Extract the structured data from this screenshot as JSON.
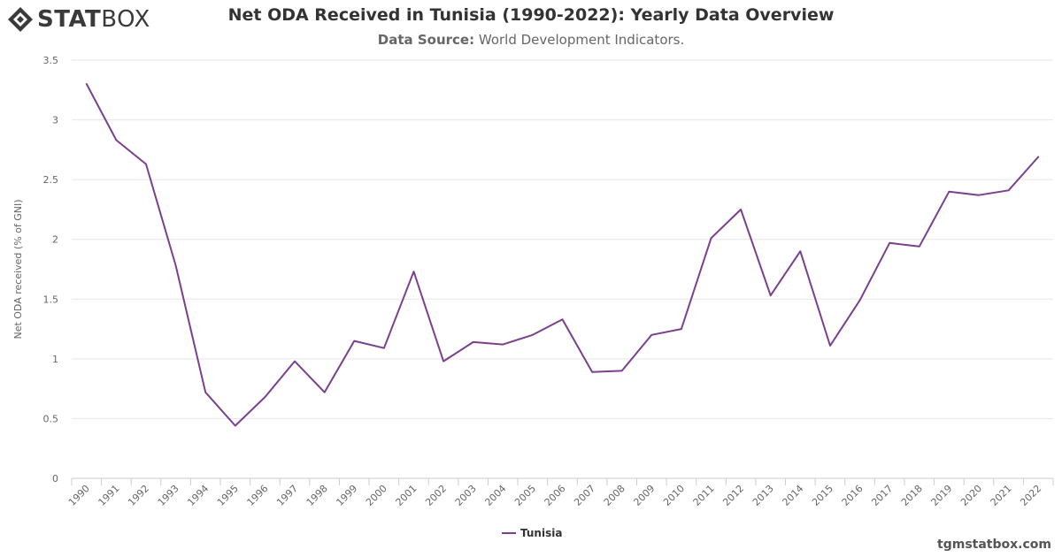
{
  "brand": {
    "logo_bold": "STAT",
    "logo_light": "BOX"
  },
  "header": {
    "title": "Net ODA Received in Tunisia (1990-2022): Yearly Data Overview",
    "subtitle_label": "Data Source:",
    "subtitle_text": "World Development Indicators."
  },
  "footer": {
    "site": "tgmstatbox.com"
  },
  "chart_data": {
    "type": "line",
    "title": "Net ODA Received in Tunisia (1990-2022): Yearly Data Overview",
    "ylabel": "Net ODA received (% of GNI)",
    "xlabel": "",
    "ylim": [
      0,
      3.5
    ],
    "yticks": [
      "0",
      "0.5",
      "1",
      "1.5",
      "2",
      "2.5",
      "3",
      "3.5"
    ],
    "grid": true,
    "legend_position": "bottom-center",
    "categories": [
      "1990",
      "1991",
      "1992",
      "1993",
      "1994",
      "1995",
      "1996",
      "1997",
      "1998",
      "1999",
      "2000",
      "2001",
      "2002",
      "2003",
      "2004",
      "2005",
      "2006",
      "2007",
      "2008",
      "2009",
      "2010",
      "2011",
      "2012",
      "2013",
      "2014",
      "2015",
      "2016",
      "2017",
      "2018",
      "2019",
      "2020",
      "2021",
      "2022"
    ],
    "series": [
      {
        "name": "Tunisia",
        "color": "#7b3f8e",
        "values": [
          3.3,
          2.83,
          2.63,
          1.78,
          0.72,
          0.44,
          0.68,
          0.98,
          0.72,
          1.15,
          1.09,
          1.73,
          0.98,
          1.14,
          1.12,
          1.2,
          1.33,
          0.89,
          0.9,
          1.2,
          1.25,
          2.01,
          2.25,
          1.53,
          1.9,
          1.11,
          1.49,
          1.97,
          1.94,
          2.4,
          2.37,
          2.41,
          2.69
        ]
      }
    ]
  }
}
